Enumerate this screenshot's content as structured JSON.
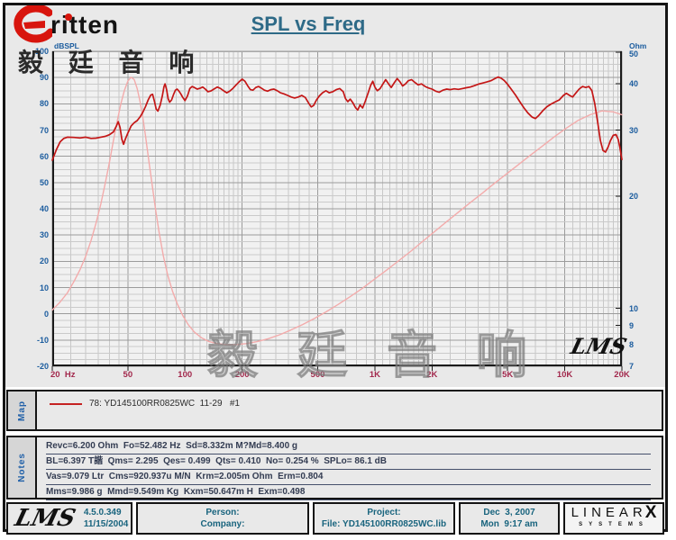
{
  "header": {
    "title": "SPL vs Freq",
    "logo_text": "ritten",
    "logo_cjk": "毅 廷 音 响"
  },
  "watermark": {
    "cjk": "毅 廷 音 响",
    "lms": "LMS"
  },
  "colors": {
    "spl_curve": "#c41616",
    "impedance_curve": "#f3abab",
    "axis_left_right": "#1b5c9e",
    "axis_bottom": "#a2284c",
    "title": "#2e6a87",
    "footer_text": "#19647e",
    "legend_swatch": "#c52222"
  },
  "chart_data": {
    "type": "line",
    "title": "SPL vs Freq",
    "grid": "log-x, minor+major grey grid",
    "legend_position": "map band below chart",
    "x_axis": {
      "label": "Hz",
      "scale": "log",
      "min": 20,
      "max": 20000,
      "ticks": [
        "20  Hz",
        "50",
        "100",
        "200",
        "500",
        "1K",
        "2K",
        "5K",
        "10K",
        "20K"
      ],
      "tick_values": [
        20,
        50,
        100,
        200,
        500,
        1000,
        2000,
        5000,
        10000,
        20000
      ]
    },
    "y_left": {
      "label": "dBSPL",
      "min": -20,
      "max": 100,
      "ticks": [
        100,
        90,
        80,
        70,
        60,
        50,
        40,
        30,
        20,
        10,
        0,
        -10,
        -20
      ]
    },
    "y_right": {
      "label": "Ohm",
      "scale": "log",
      "ticks": [
        50,
        40,
        30,
        20,
        10,
        9,
        8,
        7
      ]
    },
    "series": [
      {
        "name": "impedance-ohm",
        "axis": "right",
        "color": "#f3abab",
        "width": 1.4,
        "points": [
          [
            20,
            9.9
          ],
          [
            22,
            10.4
          ],
          [
            24,
            11.0
          ],
          [
            26,
            11.8
          ],
          [
            28,
            12.7
          ],
          [
            30,
            13.8
          ],
          [
            32,
            15.2
          ],
          [
            34,
            16.9
          ],
          [
            36,
            19.0
          ],
          [
            38,
            21.6
          ],
          [
            40,
            24.6
          ],
          [
            42,
            28.2
          ],
          [
            44,
            31.8
          ],
          [
            46,
            35.4
          ],
          [
            48,
            38.4
          ],
          [
            50,
            40.6
          ],
          [
            52,
            41.6
          ],
          [
            54,
            41.0
          ],
          [
            56,
            38.8
          ],
          [
            58,
            35.8
          ],
          [
            60,
            32.4
          ],
          [
            62,
            28.9
          ],
          [
            64,
            25.6
          ],
          [
            67,
            21.6
          ],
          [
            70,
            18.4
          ],
          [
            73,
            16.0
          ],
          [
            77,
            13.8
          ],
          [
            81,
            12.3
          ],
          [
            86,
            11.1
          ],
          [
            91,
            10.3
          ],
          [
            97,
            9.6
          ],
          [
            104,
            9.05
          ],
          [
            112,
            8.65
          ],
          [
            122,
            8.35
          ],
          [
            134,
            8.15
          ],
          [
            148,
            8.05
          ],
          [
            165,
            8.0
          ],
          [
            185,
            8.0
          ],
          [
            210,
            8.05
          ],
          [
            240,
            8.15
          ],
          [
            275,
            8.3
          ],
          [
            315,
            8.5
          ],
          [
            360,
            8.75
          ],
          [
            415,
            9.05
          ],
          [
            480,
            9.4
          ],
          [
            555,
            9.8
          ],
          [
            640,
            10.25
          ],
          [
            740,
            10.75
          ],
          [
            855,
            11.3
          ],
          [
            990,
            11.95
          ],
          [
            1150,
            12.65
          ],
          [
            1330,
            13.4
          ],
          [
            1540,
            14.2
          ],
          [
            1780,
            15.1
          ],
          [
            2060,
            16.05
          ],
          [
            2380,
            17.05
          ],
          [
            2750,
            18.1
          ],
          [
            3180,
            19.2
          ],
          [
            3680,
            20.35
          ],
          [
            4250,
            21.6
          ],
          [
            4920,
            22.9
          ],
          [
            5690,
            24.25
          ],
          [
            6580,
            25.7
          ],
          [
            7610,
            27.2
          ],
          [
            8800,
            28.8
          ],
          [
            10200,
            30.4
          ],
          [
            11800,
            31.9
          ],
          [
            13600,
            33.0
          ],
          [
            15700,
            33.8
          ],
          [
            18000,
            33.6
          ],
          [
            20000,
            33.0
          ]
        ]
      },
      {
        "name": "spl-db",
        "axis": "left",
        "color": "#c41616",
        "width": 1.7,
        "points": [
          [
            20,
            58.5
          ],
          [
            21,
            62.5
          ],
          [
            22,
            65.5
          ],
          [
            23,
            66.8
          ],
          [
            24,
            67.3
          ],
          [
            26,
            67.2
          ],
          [
            28,
            67.0
          ],
          [
            30,
            67.3
          ],
          [
            32,
            66.8
          ],
          [
            34,
            66.9
          ],
          [
            36,
            67.3
          ],
          [
            38,
            67.6
          ],
          [
            40,
            68.2
          ],
          [
            42,
            69.3
          ],
          [
            43.5,
            71.5
          ],
          [
            44.5,
            73.2
          ],
          [
            45.5,
            71.0
          ],
          [
            46.5,
            66.5
          ],
          [
            47.5,
            64.6
          ],
          [
            48.5,
            66.5
          ],
          [
            50,
            68.8
          ],
          [
            52,
            71.5
          ],
          [
            54,
            72.8
          ],
          [
            56,
            73.6
          ],
          [
            58,
            75.0
          ],
          [
            60,
            76.8
          ],
          [
            62,
            79.0
          ],
          [
            64,
            81.5
          ],
          [
            66,
            83.3
          ],
          [
            67.5,
            83.6
          ],
          [
            69,
            81.0
          ],
          [
            70.5,
            78.0
          ],
          [
            72,
            77.2
          ],
          [
            74,
            79.5
          ],
          [
            76,
            83.0
          ],
          [
            77.5,
            86.5
          ],
          [
            78.5,
            87.6
          ],
          [
            80,
            85.5
          ],
          [
            81.5,
            82.0
          ],
          [
            83,
            80.6
          ],
          [
            85,
            81.5
          ],
          [
            87,
            83.5
          ],
          [
            89,
            85.2
          ],
          [
            91,
            85.6
          ],
          [
            93,
            84.8
          ],
          [
            95,
            83.8
          ],
          [
            97,
            82.6
          ],
          [
            100,
            81.2
          ],
          [
            103,
            83.0
          ],
          [
            106,
            85.8
          ],
          [
            109,
            86.6
          ],
          [
            112,
            86.2
          ],
          [
            116,
            85.6
          ],
          [
            120,
            85.9
          ],
          [
            124,
            86.4
          ],
          [
            128,
            85.6
          ],
          [
            132,
            84.6
          ],
          [
            137,
            84.9
          ],
          [
            142,
            85.6
          ],
          [
            148,
            86.4
          ],
          [
            154,
            85.8
          ],
          [
            160,
            84.9
          ],
          [
            166,
            84.2
          ],
          [
            172,
            84.8
          ],
          [
            179,
            85.9
          ],
          [
            186,
            87.2
          ],
          [
            193,
            88.4
          ],
          [
            200,
            89.4
          ],
          [
            207,
            88.6
          ],
          [
            214,
            86.8
          ],
          [
            221,
            85.4
          ],
          [
            228,
            85.2
          ],
          [
            236,
            86.2
          ],
          [
            244,
            86.6
          ],
          [
            252,
            86.0
          ],
          [
            262,
            85.2
          ],
          [
            272,
            84.8
          ],
          [
            283,
            85.4
          ],
          [
            294,
            85.6
          ],
          [
            306,
            85.0
          ],
          [
            318,
            84.2
          ],
          [
            332,
            83.8
          ],
          [
            347,
            83.2
          ],
          [
            362,
            82.6
          ],
          [
            378,
            82.2
          ],
          [
            395,
            82.6
          ],
          [
            412,
            83.2
          ],
          [
            430,
            82.4
          ],
          [
            448,
            80.2
          ],
          [
            462,
            78.8
          ],
          [
            476,
            79.4
          ],
          [
            492,
            81.4
          ],
          [
            510,
            83.0
          ],
          [
            530,
            84.2
          ],
          [
            552,
            85.0
          ],
          [
            575,
            84.2
          ],
          [
            600,
            84.6
          ],
          [
            626,
            85.4
          ],
          [
            653,
            85.8
          ],
          [
            681,
            84.6
          ],
          [
            700,
            82.0
          ],
          [
            720,
            80.8
          ],
          [
            742,
            81.8
          ],
          [
            766,
            80.4
          ],
          [
            790,
            78.6
          ],
          [
            812,
            77.6
          ],
          [
            836,
            79.6
          ],
          [
            862,
            78.4
          ],
          [
            890,
            81.0
          ],
          [
            920,
            84.0
          ],
          [
            950,
            87.0
          ],
          [
            975,
            88.6
          ],
          [
            1000,
            86.4
          ],
          [
            1030,
            85.0
          ],
          [
            1065,
            85.8
          ],
          [
            1100,
            87.4
          ],
          [
            1140,
            89.2
          ],
          [
            1180,
            87.6
          ],
          [
            1220,
            86.2
          ],
          [
            1265,
            88.0
          ],
          [
            1310,
            89.6
          ],
          [
            1355,
            88.4
          ],
          [
            1400,
            86.8
          ],
          [
            1450,
            87.6
          ],
          [
            1500,
            88.8
          ],
          [
            1560,
            89.2
          ],
          [
            1620,
            88.2
          ],
          [
            1690,
            87.2
          ],
          [
            1760,
            87.6
          ],
          [
            1840,
            86.6
          ],
          [
            1920,
            86.0
          ],
          [
            2000,
            85.6
          ],
          [
            2090,
            84.8
          ],
          [
            2180,
            84.4
          ],
          [
            2280,
            85.2
          ],
          [
            2390,
            85.6
          ],
          [
            2500,
            85.4
          ],
          [
            2620,
            85.7
          ],
          [
            2750,
            85.5
          ],
          [
            2890,
            85.8
          ],
          [
            3030,
            86.1
          ],
          [
            3180,
            86.4
          ],
          [
            3340,
            86.9
          ],
          [
            3510,
            87.5
          ],
          [
            3690,
            87.9
          ],
          [
            3880,
            88.3
          ],
          [
            4080,
            88.8
          ],
          [
            4290,
            89.6
          ],
          [
            4450,
            90.2
          ],
          [
            4620,
            89.8
          ],
          [
            4800,
            88.9
          ],
          [
            5000,
            87.4
          ],
          [
            5250,
            85.4
          ],
          [
            5520,
            83.2
          ],
          [
            5800,
            80.8
          ],
          [
            6100,
            78.4
          ],
          [
            6410,
            76.4
          ],
          [
            6740,
            74.9
          ],
          [
            7000,
            74.4
          ],
          [
            7300,
            75.6
          ],
          [
            7670,
            77.4
          ],
          [
            8060,
            78.9
          ],
          [
            8470,
            79.9
          ],
          [
            8900,
            80.7
          ],
          [
            9360,
            81.5
          ],
          [
            9840,
            83.2
          ],
          [
            10200,
            84.0
          ],
          [
            10600,
            83.2
          ],
          [
            11000,
            82.6
          ],
          [
            11400,
            84.0
          ],
          [
            11900,
            85.6
          ],
          [
            12400,
            86.6
          ],
          [
            12900,
            86.2
          ],
          [
            13400,
            86.6
          ],
          [
            13900,
            85.0
          ],
          [
            14400,
            80.0
          ],
          [
            14900,
            73.0
          ],
          [
            15400,
            66.0
          ],
          [
            15900,
            62.2
          ],
          [
            16400,
            61.6
          ],
          [
            16900,
            63.5
          ],
          [
            17400,
            66.0
          ],
          [
            18000,
            68.0
          ],
          [
            18600,
            68.3
          ],
          [
            19100,
            66.5
          ],
          [
            19500,
            63.5
          ],
          [
            19800,
            60.5
          ],
          [
            20000,
            58.8
          ]
        ]
      }
    ]
  },
  "map": {
    "label": "Map",
    "legend": "78: YD145100RR0825WC  11-29   #1"
  },
  "notes": {
    "label": "Notes",
    "lines": [
      "Revc=6.200 Ohm  Fo=52.482 Hz  Sd=8.332m M?Md=8.400 g",
      "BL=6.397 T諧  Qms= 2.295  Qes= 0.499  Qts= 0.410  No= 0.254 %  SPLo= 86.1 dB",
      "Vas=9.079 Ltr  Cms=920.937u M/N  Krm=2.005m Ohm  Erm=0.804",
      "Mms=9.986 g  Mmd=9.549m Kg  Kxm=50.647m H  Exm=0.498"
    ]
  },
  "footer": {
    "lms_logo": "LMS",
    "version": "4.5.0.349",
    "version_date": "11/15/2004",
    "person_label": "Person:",
    "company_label": "Company:",
    "project_label": "Project:",
    "file_label": "File: YD145100RR0825WC.lib",
    "date": "Dec  3, 2007",
    "time": "Mon  9:17 am",
    "brand_main": "LINEAR",
    "brand_x": "X",
    "brand_sub": "SYSTEMS"
  }
}
